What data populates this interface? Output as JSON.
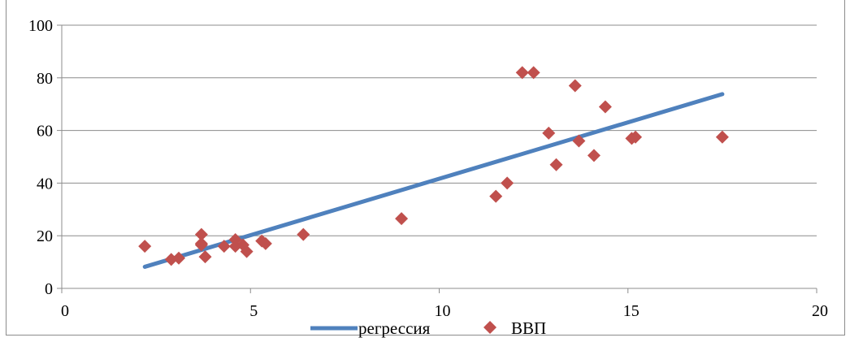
{
  "chart_data": {
    "type": "scatter",
    "title": "",
    "xlabel": "",
    "ylabel": "",
    "xlim": [
      0,
      20
    ],
    "ylim": [
      0,
      100
    ],
    "x_ticks": [
      "0",
      "5",
      "10",
      "15",
      "20"
    ],
    "y_ticks": [
      "0",
      "20",
      "40",
      "60",
      "80",
      "100"
    ],
    "grid": "horizontal",
    "legend_position": "bottom",
    "series": [
      {
        "name": "регрессия",
        "kind": "line",
        "color": "#4f81bd",
        "points": [
          [
            2.2,
            8.2
          ],
          [
            17.5,
            73.8
          ]
        ]
      },
      {
        "name": "ВВП",
        "kind": "scatter",
        "marker": "diamond",
        "color": "#c0504d",
        "points": [
          [
            2.2,
            16
          ],
          [
            2.9,
            11
          ],
          [
            3.1,
            11.5
          ],
          [
            3.7,
            20.5
          ],
          [
            3.7,
            17
          ],
          [
            3.7,
            16.5
          ],
          [
            3.8,
            12
          ],
          [
            4.3,
            16
          ],
          [
            4.6,
            18.5
          ],
          [
            4.6,
            16
          ],
          [
            4.8,
            16.5
          ],
          [
            4.9,
            14
          ],
          [
            5.3,
            18
          ],
          [
            5.4,
            17
          ],
          [
            6.4,
            20.5
          ],
          [
            9.0,
            26.5
          ],
          [
            11.5,
            35
          ],
          [
            11.8,
            40
          ],
          [
            12.2,
            82
          ],
          [
            12.5,
            82
          ],
          [
            12.9,
            59
          ],
          [
            13.1,
            47
          ],
          [
            13.6,
            77
          ],
          [
            13.7,
            56
          ],
          [
            14.1,
            50.5
          ],
          [
            14.4,
            69
          ],
          [
            15.1,
            57
          ],
          [
            15.2,
            57.5
          ],
          [
            17.5,
            57.5
          ]
        ]
      }
    ]
  }
}
